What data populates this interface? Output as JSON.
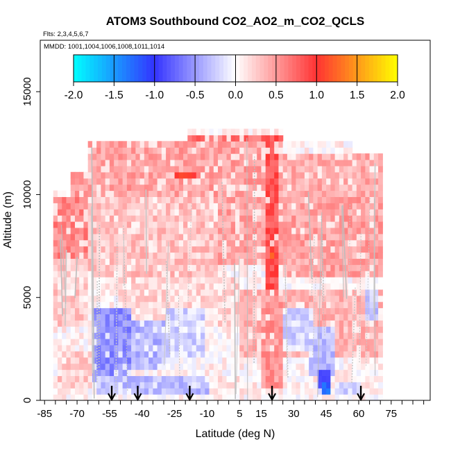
{
  "chart_data": {
    "type": "heatmap",
    "title": "ATOM3 Southbound CO2_AO2_m_CO2_QCLS",
    "flights_label": "Flts: 2,3,4,5,6,7",
    "dates_label": "MMDD: 1001,1004,1006,1008,1011,1014",
    "xlabel": "Latitude (deg N)",
    "ylabel": "Altitude (m)",
    "xlim": [
      -87,
      93
    ],
    "ylim": [
      0,
      17500
    ],
    "x_ticks": [
      -85,
      -70,
      -55,
      -40,
      -25,
      -10,
      5,
      15,
      30,
      45,
      60,
      75
    ],
    "x_tick_labels": [
      "-85",
      "-70",
      "-55",
      "-40",
      "-25",
      "-10",
      "5",
      "15",
      "30",
      "45",
      "60",
      "75"
    ],
    "x_minor_step": 5,
    "y_ticks": [
      0,
      5000,
      10000,
      15000
    ],
    "y_tick_labels": [
      "0",
      "5000",
      "10000",
      "15000"
    ],
    "colorbar": {
      "ticks": [
        -2.0,
        -1.5,
        -1.0,
        -0.5,
        0.0,
        0.5,
        1.0,
        1.5,
        2.0
      ],
      "tick_labels": [
        "-2.0",
        "-1.5",
        "-1.0",
        "-0.5",
        "0.0",
        "0.5",
        "1.0",
        "1.5",
        "2.0"
      ],
      "stops": [
        {
          "v": -2.0,
          "c": "#00ffff"
        },
        {
          "v": -1.0,
          "c": "#3333ff"
        },
        {
          "v": 0.0,
          "c": "#ffffff"
        },
        {
          "v": 1.0,
          "c": "#ff3333"
        },
        {
          "v": 2.0,
          "c": "#ffff00"
        }
      ]
    },
    "profile_markers_lat": [
      -54,
      -42,
      -18,
      20,
      61
    ],
    "extent": [
      {
        "lat0": -81,
        "lat1": -72,
        "top": 10000
      },
      {
        "lat0": -72,
        "lat1": -65,
        "top": 11000
      },
      {
        "lat0": -65,
        "lat1": -50,
        "top": 12500
      },
      {
        "lat0": -50,
        "lat1": -19,
        "top": 12500
      },
      {
        "lat0": -19,
        "lat1": 25,
        "top": 13000
      },
      {
        "lat0": 25,
        "lat1": 57,
        "top": 12500
      },
      {
        "lat0": 57,
        "lat1": 71,
        "top": 12000
      }
    ],
    "regions": [
      {
        "lat0": -81,
        "lat1": -65,
        "alt0": 7000,
        "alt1": 10000,
        "value": 0.6
      },
      {
        "lat0": -72,
        "lat1": 25,
        "alt0": 10000,
        "alt1": 12500,
        "value": 0.45
      },
      {
        "lat0": -19,
        "lat1": 25,
        "alt0": 12500,
        "alt1": 13000,
        "value": 0.7
      },
      {
        "lat0": -28,
        "lat1": -14,
        "alt0": 10700,
        "alt1": 11000,
        "value": 1.1
      },
      {
        "lat0": 25,
        "lat1": 71,
        "alt0": 10000,
        "alt1": 12000,
        "value": 0.4
      },
      {
        "lat0": -65,
        "lat1": -5,
        "alt0": 6000,
        "alt1": 10000,
        "value": 0.3
      },
      {
        "lat0": -5,
        "lat1": 25,
        "alt0": 6500,
        "alt1": 10000,
        "value": 0.45
      },
      {
        "lat0": 17,
        "lat1": 24,
        "alt0": 5500,
        "alt1": 13000,
        "value": 0.85
      },
      {
        "lat0": 19,
        "lat1": 21,
        "alt0": 6500,
        "alt1": 8000,
        "value": 1.1
      },
      {
        "lat0": 25,
        "lat1": 71,
        "alt0": 6000,
        "alt1": 10000,
        "value": 0.45
      },
      {
        "lat0": -80,
        "lat1": -65,
        "alt0": 3500,
        "alt1": 7000,
        "value": 0.25
      },
      {
        "lat0": -50,
        "lat1": 5,
        "alt0": 3500,
        "alt1": 6000,
        "value": 0.2
      },
      {
        "lat0": 5,
        "lat1": 71,
        "alt0": 2000,
        "alt1": 5500,
        "value": 0.35
      },
      {
        "lat0": 15,
        "lat1": 25,
        "alt0": 500,
        "alt1": 5500,
        "value": 0.5
      },
      {
        "lat0": -62,
        "lat1": -45,
        "alt0": 1000,
        "alt1": 4500,
        "value": -0.55
      },
      {
        "lat0": -45,
        "lat1": -28,
        "alt0": 1500,
        "alt1": 4000,
        "value": -0.35
      },
      {
        "lat0": -28,
        "lat1": -10,
        "alt0": 2000,
        "alt1": 4500,
        "value": -0.2
      },
      {
        "lat0": 38,
        "lat1": 50,
        "alt0": 1200,
        "alt1": 3500,
        "value": -0.3
      },
      {
        "lat0": 25,
        "lat1": 40,
        "alt0": 2500,
        "alt1": 4500,
        "value": -0.2
      },
      {
        "lat0": 42,
        "lat1": 48,
        "alt0": 200,
        "alt1": 1500,
        "value": -0.85
      },
      {
        "lat0": 44,
        "lat1": 47,
        "alt0": 300,
        "alt1": 800,
        "value": -1.3
      },
      {
        "lat0": 50,
        "lat1": 62,
        "alt0": 200,
        "alt1": 1000,
        "value": -0.3
      },
      {
        "lat0": 63,
        "lat1": 70,
        "alt0": 4000,
        "alt1": 5500,
        "value": -0.3
      },
      {
        "lat0": -78,
        "lat1": -62,
        "alt0": 500,
        "alt1": 2500,
        "value": 0.25
      },
      {
        "lat0": -60,
        "lat1": -8,
        "alt0": 200,
        "alt1": 1200,
        "value": -0.3
      },
      {
        "lat0": -8,
        "lat1": 15,
        "alt0": 200,
        "alt1": 1200,
        "value": 0.1
      }
    ]
  }
}
